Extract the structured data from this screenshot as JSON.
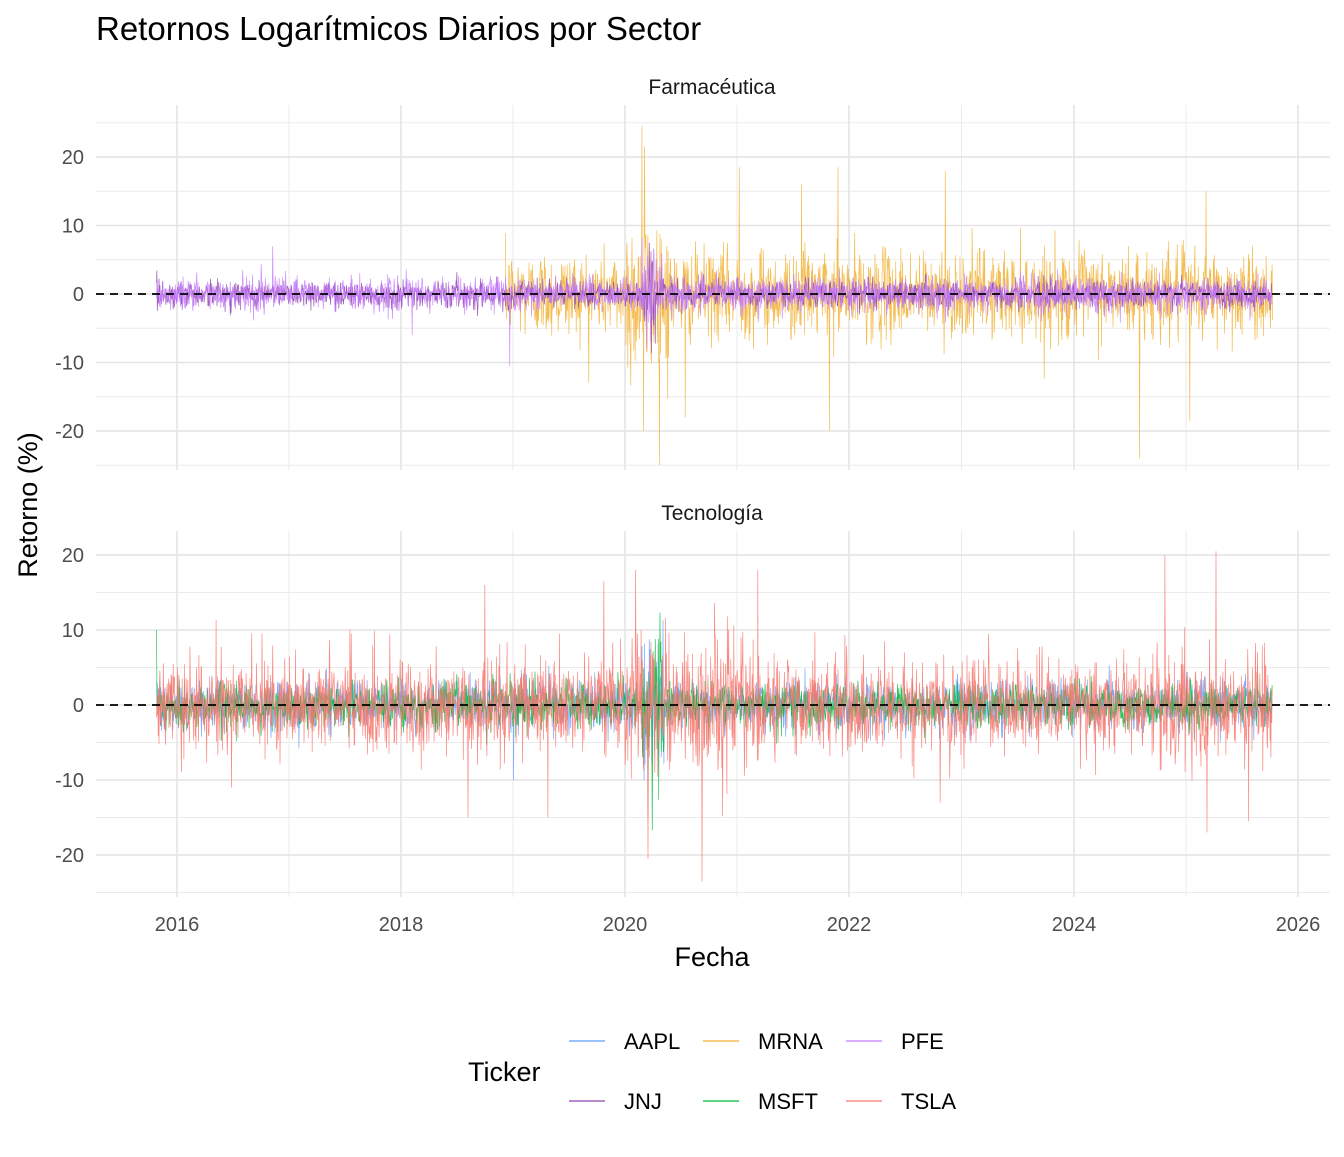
{
  "chart_data": {
    "type": "line",
    "title": "Retornos Logarítmicos Diarios por Sector",
    "xlabel": "Fecha",
    "ylabel": "Retorno (%)",
    "x_range": [
      "2015-10-01",
      "2025-10-31"
    ],
    "x_ticks": [
      "2016",
      "2018",
      "2020",
      "2022",
      "2024",
      "2026"
    ],
    "x_tick_dates": [
      "2016-01-01",
      "2018-01-01",
      "2020-01-01",
      "2022-01-01",
      "2024-01-01",
      "2026-01-01"
    ],
    "ylim": [
      -25,
      25
    ],
    "y_ticks": [
      -20,
      -10,
      0,
      10,
      20
    ],
    "y_tick_labels": [
      "-20",
      "-10",
      "0",
      "10",
      "20"
    ],
    "grid": true,
    "reference_line": {
      "y": 0,
      "style": "dashed",
      "color": "#000000"
    },
    "legend": {
      "title": "Ticker",
      "placement": "bottom",
      "entries": [
        {
          "name": "AAPL",
          "color": "#619CFF"
        },
        {
          "name": "MRNA",
          "color": "#F2B134"
        },
        {
          "name": "PFE",
          "color": "#C77CFF"
        },
        {
          "name": "JNJ",
          "color": "#8E44AD"
        },
        {
          "name": "MSFT",
          "color": "#00BA38"
        },
        {
          "name": "TSLA",
          "color": "#F8766D"
        }
      ]
    },
    "panels": [
      {
        "title": "Farmacéutica",
        "series": [
          {
            "name": "MRNA",
            "color": "#F2B134",
            "start": "2018-12-07",
            "end": "2025-10-10",
            "spikes": [
              [
                "2020-02-25",
                24.5
              ],
              [
                "2020-03-05",
                21.5
              ],
              [
                "2020-03-02",
                -20.0
              ],
              [
                "2021-01-08",
                18.5
              ],
              [
                "2021-11-26",
                18.5
              ],
              [
                "2022-11-10",
                18.0
              ],
              [
                "2021-10-29",
                -20.0
              ],
              [
                "2024-08-02",
                -24.0
              ],
              [
                "2025-03-07",
                15.0
              ],
              [
                "2025-01-13",
                -18.5
              ],
              [
                "2021-07-30",
                16.0
              ],
              [
                "2020-07-15",
                -18.0
              ]
            ]
          },
          {
            "name": "JNJ",
            "color": "#8E44AD",
            "start": "2015-10-26",
            "end": "2025-10-10",
            "spikes": []
          },
          {
            "name": "PFE",
            "color": "#C77CFF",
            "start": "2015-10-26",
            "end": "2025-10-10",
            "spikes": [
              [
                "2016-11-09",
                7.0
              ],
              [
                "2018-02-07",
                -6.0
              ],
              [
                "2018-12-21",
                -10.5
              ],
              [
                "2020-03-12",
                -8.0
              ]
            ]
          }
        ]
      },
      {
        "title": "Tecnología",
        "series": [
          {
            "name": "AAPL",
            "color": "#619CFF",
            "start": "2015-10-26",
            "end": "2025-10-10",
            "spikes": [
              [
                "2019-01-03",
                -10.0
              ],
              [
                "2020-03-16",
                -13.0
              ]
            ]
          },
          {
            "name": "MSFT",
            "color": "#00BA38",
            "start": "2015-10-26",
            "end": "2025-10-10",
            "spikes": [
              [
                "2015-10-23",
                10.0
              ],
              [
                "2020-03-16",
                -15.0
              ]
            ]
          },
          {
            "name": "TSLA",
            "color": "#F8766D",
            "start": "2015-10-26",
            "end": "2025-10-10",
            "spikes": [
              [
                "2020-02-04",
                18.0
              ],
              [
                "2020-03-16",
                -20.5
              ],
              [
                "2020-09-08",
                -23.5
              ],
              [
                "2018-10-01",
                16.0
              ],
              [
                "2018-08-08",
                -15.0
              ],
              [
                "2019-10-24",
                16.5
              ],
              [
                "2021-03-09",
                18.0
              ],
              [
                "2024-10-24",
                20.0
              ],
              [
                "2025-04-09",
                20.5
              ],
              [
                "2025-03-10",
                -17.0
              ],
              [
                "2016-06-27",
                -11.0
              ],
              [
                "2019-04-25",
                -15.0
              ],
              [
                "2022-10-24",
                -13.0
              ],
              [
                "2025-07-24",
                -15.5
              ]
            ]
          }
        ]
      }
    ]
  }
}
